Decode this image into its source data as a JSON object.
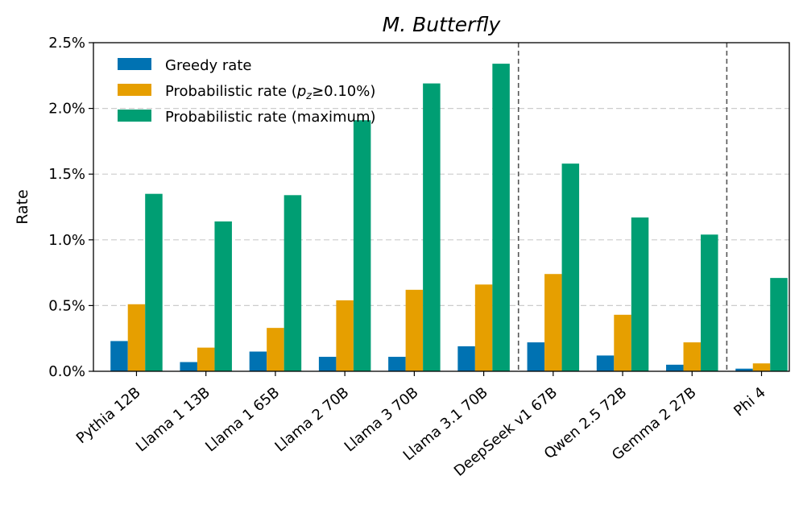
{
  "chart_data": {
    "type": "bar",
    "title": "M. Butterfly",
    "xlabel": "",
    "ylabel": "Rate",
    "ylim": [
      0,
      2.5
    ],
    "yticks": [
      0.0,
      0.5,
      1.0,
      1.5,
      2.0,
      2.5
    ],
    "ytick_labels": [
      "0.0%",
      "0.5%",
      "1.0%",
      "1.5%",
      "2.0%",
      "2.5%"
    ],
    "grid": "horizontal dashed",
    "legend_position": "top-left",
    "categories": [
      "Pythia 12B",
      "Llama 1 13B",
      "Llama 1 65B",
      "Llama 2 70B",
      "Llama 3 70B",
      "Llama 3.1 70B",
      "DeepSeek v1 67B",
      "Qwen 2.5 72B",
      "Gemma 2 27B",
      "Phi 4"
    ],
    "group_separators_after": [
      "Llama 3.1 70B",
      "Gemma 2 27B"
    ],
    "series": [
      {
        "name": "Greedy rate",
        "color": "#0072b2",
        "values": [
          0.23,
          0.07,
          0.15,
          0.11,
          0.11,
          0.19,
          0.22,
          0.12,
          0.05,
          0.02
        ]
      },
      {
        "name": "Probabilistic rate (p_z≥0.10%)",
        "color": "#e69f00",
        "values": [
          0.51,
          0.18,
          0.33,
          0.54,
          0.62,
          0.66,
          0.74,
          0.43,
          0.22,
          0.06
        ]
      },
      {
        "name": "Probabilistic rate (maximum)",
        "color": "#009e73",
        "values": [
          1.35,
          1.14,
          1.34,
          1.91,
          2.19,
          2.34,
          1.58,
          1.17,
          1.04,
          0.71
        ]
      }
    ]
  },
  "legend": {
    "greedy": "Greedy rate",
    "prob_prefix": "Probabilistic rate (",
    "prob_var": "p",
    "prob_sub": "z",
    "prob_suffix": "≥0.10%)",
    "max": "Probabilistic rate (maximum)"
  }
}
